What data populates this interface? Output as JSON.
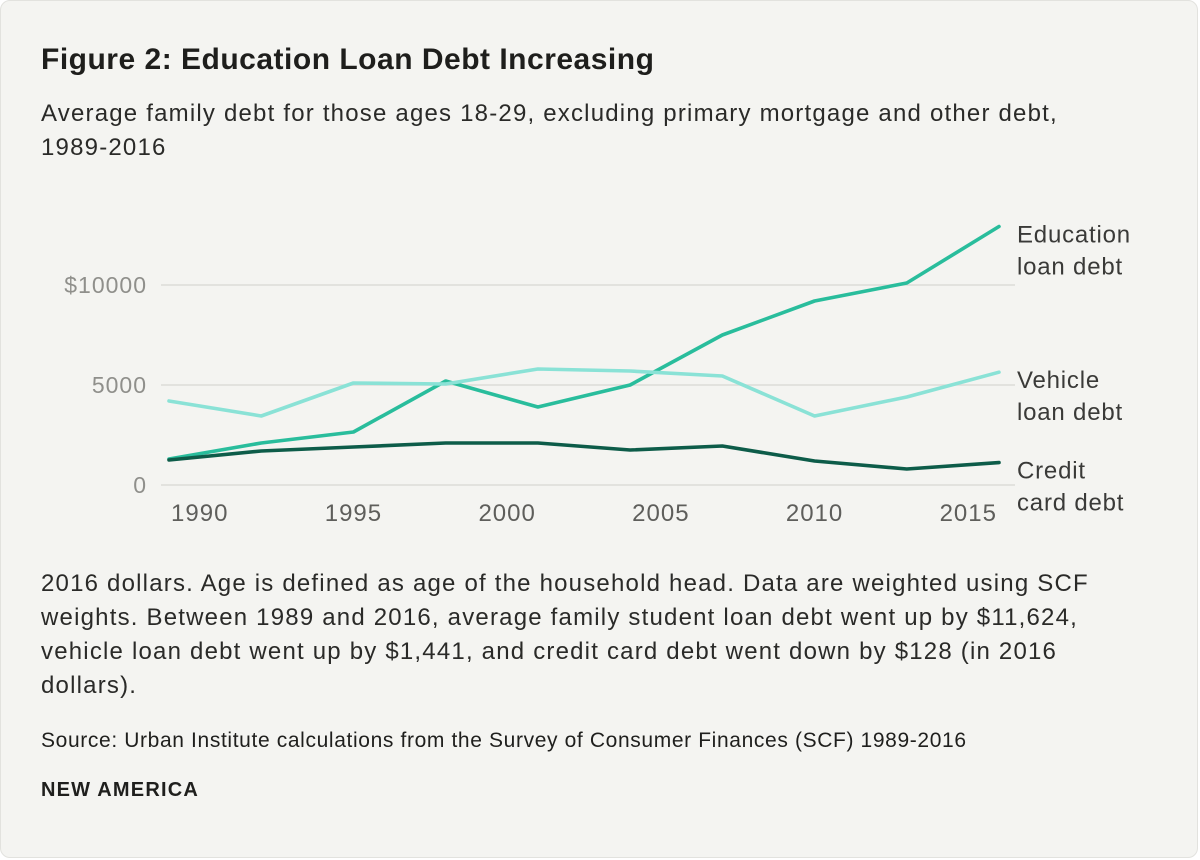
{
  "page": {
    "background": "#F4F4F1"
  },
  "header": {
    "title": "Figure 2: Education Loan Debt Increasing",
    "subtitle": "Average family debt for those ages 18-29, excluding primary mortgage and other debt, 1989-2016"
  },
  "chart_data": {
    "type": "line",
    "title": "",
    "xlabel": "",
    "ylabel": "",
    "x": [
      1989,
      1992,
      1995,
      1998,
      2001,
      2004,
      2007,
      2010,
      2013,
      2016
    ],
    "series": [
      {
        "name": "Education loan debt",
        "label_lines": [
          "Education",
          "loan debt"
        ],
        "color": "#29BD9C",
        "values": [
          1300,
          2100,
          2650,
          5200,
          3900,
          5000,
          7500,
          9200,
          10100,
          12924
        ]
      },
      {
        "name": "Vehicle loan debt",
        "label_lines": [
          "Vehicle",
          "loan debt"
        ],
        "color": "#8AE2D6",
        "values": [
          4200,
          3450,
          5100,
          5050,
          5800,
          5700,
          5450,
          3450,
          4400,
          5641
        ]
      },
      {
        "name": "Credit card debt",
        "label_lines": [
          "Credit",
          "card debt"
        ],
        "color": "#0D5C49",
        "values": [
          1250,
          1700,
          1900,
          2100,
          2100,
          1750,
          1950,
          1200,
          800,
          1122
        ]
      }
    ],
    "y_ticks": [
      {
        "value": 0,
        "label": "0"
      },
      {
        "value": 5000,
        "label": "5000"
      },
      {
        "value": 10000,
        "label": "$10000"
      }
    ],
    "x_ticks": [
      1990,
      1995,
      2000,
      2005,
      2010,
      2015
    ],
    "xlim": [
      1989,
      2016
    ],
    "ylim": [
      0,
      13500
    ],
    "grid": "horizontal",
    "legend_position": "right-end-labels",
    "grid_color": "#DBDBD7",
    "y_tick_color": "#8F8F8B",
    "x_tick_color": "#5E5E5B",
    "label_color": "#3A3A38"
  },
  "footer": {
    "note": "2016 dollars. Age is defined as age of the household head. Data are weighted using SCF weights. Between 1989 and 2016, average family student loan debt went up by $11,624, vehicle loan debt went up by $1,441, and credit card debt went down by $128 (in 2016 dollars).",
    "source": "Source: Urban Institute calculations from the Survey of Consumer Finances (SCF) 1989-2016",
    "logo": "NEW AMERICA"
  }
}
